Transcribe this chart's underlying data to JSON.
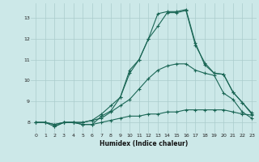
{
  "xlabel": "Humidex (Indice chaleur)",
  "bg_color": "#cce8e8",
  "grid_color": "#aacccc",
  "line_color": "#1a6655",
  "xlim": [
    -0.5,
    23.5
  ],
  "ylim": [
    7.5,
    13.7
  ],
  "yticks": [
    8,
    9,
    10,
    11,
    12,
    13
  ],
  "xticks": [
    0,
    1,
    2,
    3,
    4,
    5,
    6,
    7,
    8,
    9,
    10,
    11,
    12,
    13,
    14,
    15,
    16,
    17,
    18,
    19,
    20,
    21,
    22,
    23
  ],
  "line1_x": [
    0,
    1,
    2,
    3,
    4,
    5,
    6,
    7,
    8,
    9,
    10,
    11,
    12,
    13,
    14,
    15,
    16,
    17,
    18,
    19,
    20,
    21,
    22,
    23
  ],
  "line1_y": [
    8.0,
    8.0,
    7.8,
    8.0,
    8.0,
    7.9,
    7.9,
    8.0,
    8.1,
    8.2,
    8.3,
    8.3,
    8.4,
    8.4,
    8.5,
    8.5,
    8.6,
    8.6,
    8.6,
    8.6,
    8.6,
    8.5,
    8.4,
    8.35
  ],
  "line2_x": [
    0,
    1,
    2,
    3,
    4,
    5,
    6,
    7,
    8,
    9,
    10,
    11,
    12,
    13,
    14,
    15,
    16,
    17,
    18,
    19,
    20,
    21,
    22,
    23
  ],
  "line2_y": [
    8.0,
    8.0,
    7.9,
    8.0,
    8.0,
    8.0,
    8.1,
    8.2,
    8.5,
    8.8,
    9.1,
    9.6,
    10.1,
    10.5,
    10.7,
    10.8,
    10.8,
    10.5,
    10.35,
    10.25,
    9.4,
    9.1,
    8.5,
    8.2
  ],
  "line3_x": [
    0,
    1,
    2,
    3,
    4,
    5,
    6,
    7,
    8,
    9,
    10,
    11,
    12,
    13,
    14,
    15,
    16,
    17,
    18,
    19,
    20,
    21,
    22,
    23
  ],
  "line3_y": [
    8.0,
    8.0,
    7.9,
    8.0,
    8.0,
    8.0,
    8.1,
    8.4,
    8.8,
    9.2,
    10.35,
    11.0,
    12.0,
    12.6,
    13.25,
    13.25,
    13.35,
    11.7,
    10.85,
    10.35,
    10.3,
    9.45,
    8.95,
    8.4
  ],
  "line4_x": [
    2,
    3,
    4,
    5,
    6,
    7,
    8,
    9,
    10,
    11,
    12,
    13,
    14,
    15,
    16,
    17,
    18,
    19,
    20,
    21,
    22,
    23
  ],
  "line4_y": [
    7.8,
    8.0,
    8.0,
    7.9,
    7.9,
    8.3,
    8.55,
    9.2,
    10.5,
    11.0,
    12.0,
    13.2,
    13.3,
    13.3,
    13.4,
    11.8,
    10.75,
    10.35,
    10.3,
    9.45,
    8.95,
    8.45
  ]
}
